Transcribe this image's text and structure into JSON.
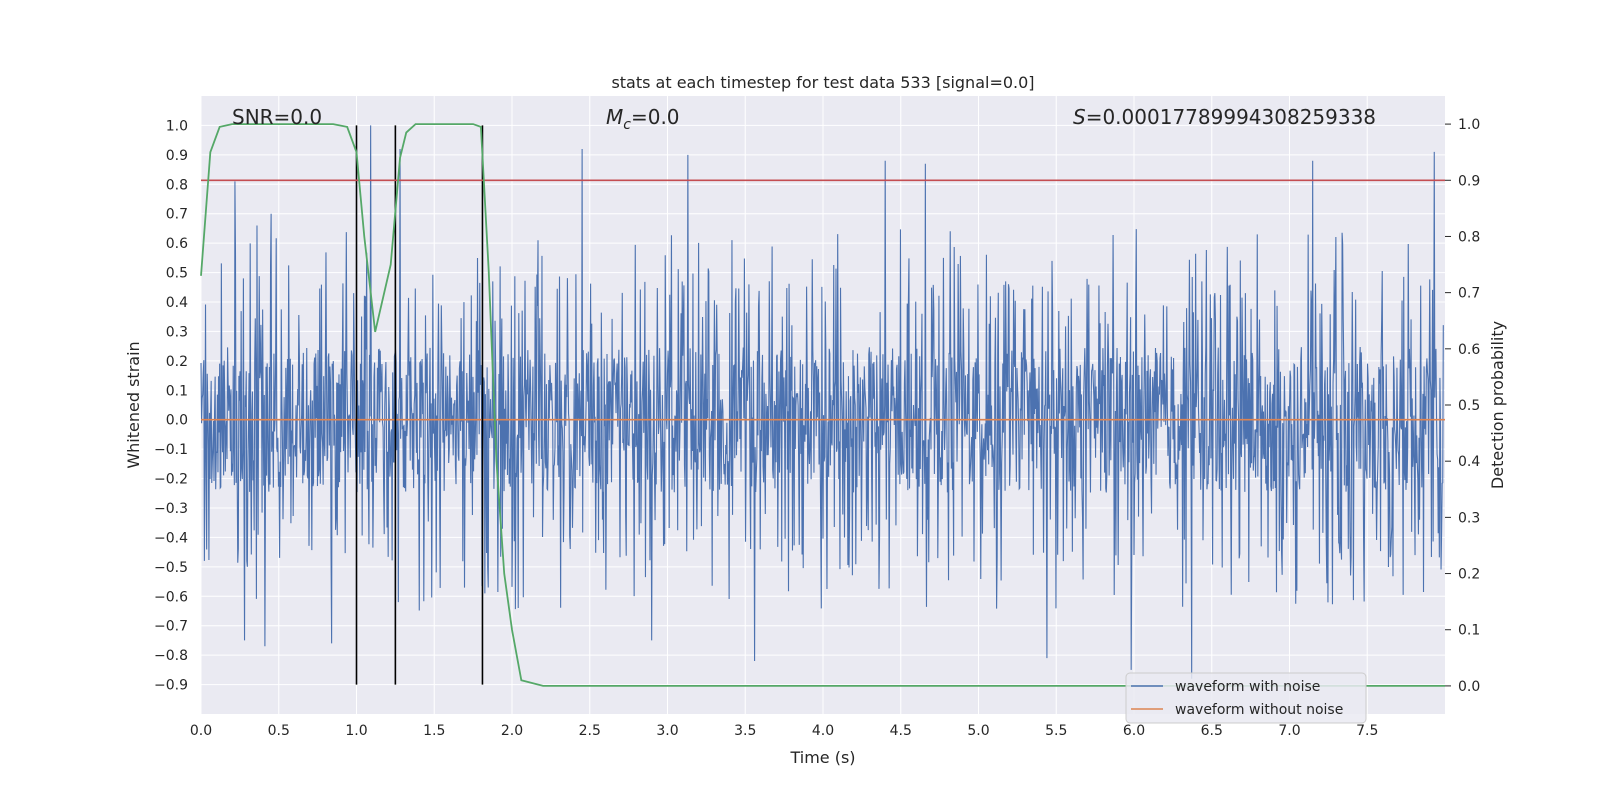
{
  "chart_data": {
    "type": "line",
    "title": "stats at each timestep for test data 533 [signal=0.0]",
    "xlabel": "Time (s)",
    "ylabel": "Whitened strain",
    "y2label": "Detection probability",
    "xlim": [
      0.0,
      8.0
    ],
    "ylim": [
      -1.0,
      1.1
    ],
    "y2lim": [
      -0.05,
      1.05
    ],
    "xticks": [
      "0.0",
      "0.5",
      "1.0",
      "1.5",
      "2.0",
      "2.5",
      "3.0",
      "3.5",
      "4.0",
      "4.5",
      "5.0",
      "5.5",
      "6.0",
      "6.5",
      "7.0",
      "7.5"
    ],
    "yticks": [
      "1.0",
      "0.9",
      "0.8",
      "0.7",
      "0.6",
      "0.5",
      "0.4",
      "0.3",
      "0.2",
      "0.1",
      "0.0",
      "−0.1",
      "−0.2",
      "−0.3",
      "−0.4",
      "−0.5",
      "−0.6",
      "−0.7",
      "−0.8",
      "−0.9"
    ],
    "y2ticks": [
      "1.0",
      "0.9",
      "0.8",
      "0.7",
      "0.6",
      "0.5",
      "0.4",
      "0.3",
      "0.2",
      "0.1",
      "0.0"
    ],
    "annotations": {
      "snr": "SNR=0.0",
      "mc_symbol": "M",
      "mc_sub": "c",
      "mc_value": "=0.0",
      "s_symbol": "S",
      "s_value": "=0.00017789994308259338"
    },
    "series": [
      {
        "name": "waveform with noise",
        "color": "#4c72b0",
        "style": "noise",
        "envelope_upper_typical": 0.45,
        "envelope_lower_typical": -0.45,
        "spikes": [
          {
            "x": 0.22,
            "y": 0.81
          },
          {
            "x": 0.36,
            "y": 0.66
          },
          {
            "x": 0.45,
            "y": 0.7
          },
          {
            "x": 1.09,
            "y": 1.0
          },
          {
            "x": 1.28,
            "y": 0.92
          },
          {
            "x": 2.45,
            "y": 0.92
          },
          {
            "x": 3.13,
            "y": 0.9
          },
          {
            "x": 4.4,
            "y": 0.88
          },
          {
            "x": 4.66,
            "y": 0.87
          },
          {
            "x": 7.15,
            "y": 0.88
          },
          {
            "x": 7.93,
            "y": 0.91
          },
          {
            "x": 0.28,
            "y": -0.75
          },
          {
            "x": 0.41,
            "y": -0.77
          },
          {
            "x": 0.84,
            "y": -0.76
          },
          {
            "x": 2.9,
            "y": -0.75
          },
          {
            "x": 3.56,
            "y": -0.82
          },
          {
            "x": 5.44,
            "y": -0.81
          },
          {
            "x": 5.98,
            "y": -0.85
          },
          {
            "x": 6.37,
            "y": -0.88
          }
        ]
      },
      {
        "name": "waveform without noise",
        "color": "#dd8452",
        "x": [
          0.0,
          8.0
        ],
        "y": [
          0.0,
          0.0
        ]
      },
      {
        "name": "detection probability",
        "axis": "right",
        "color": "#55a868",
        "x": [
          0.0,
          0.06,
          0.12,
          0.2,
          0.5,
          0.85,
          0.94,
          1.0,
          1.05,
          1.12,
          1.22,
          1.28,
          1.32,
          1.38,
          1.45,
          1.75,
          1.8,
          1.85,
          1.9,
          1.95,
          2.0,
          2.06,
          2.2,
          3.0,
          8.0
        ],
        "y": [
          0.73,
          0.95,
          0.995,
          1.0,
          1.0,
          1.0,
          0.995,
          0.95,
          0.8,
          0.63,
          0.75,
          0.94,
          0.985,
          1.0,
          1.0,
          1.0,
          0.995,
          0.74,
          0.4,
          0.2,
          0.1,
          0.01,
          0.0,
          0.0,
          0.0
        ]
      }
    ],
    "threshold": {
      "axis": "right",
      "value": 0.9,
      "color": "#c44e52"
    },
    "vlines": [
      {
        "x": 1.0,
        "ymin": -0.9,
        "ymax": 1.0
      },
      {
        "x": 1.25,
        "ymin": -0.9,
        "ymax": 1.0
      },
      {
        "x": 1.81,
        "ymin": -0.9,
        "ymax": 1.0
      }
    ],
    "grid": true,
    "legend": {
      "placement": "lower-right",
      "entries": [
        "waveform with noise",
        "waveform without noise"
      ]
    },
    "colors": {
      "plot_background": "#eaeaf2",
      "grid": "#ffffff",
      "noise": "#4c72b0",
      "clean": "#dd8452",
      "probability": "#55a868",
      "threshold": "#c44e52",
      "vline": "#000000"
    }
  }
}
